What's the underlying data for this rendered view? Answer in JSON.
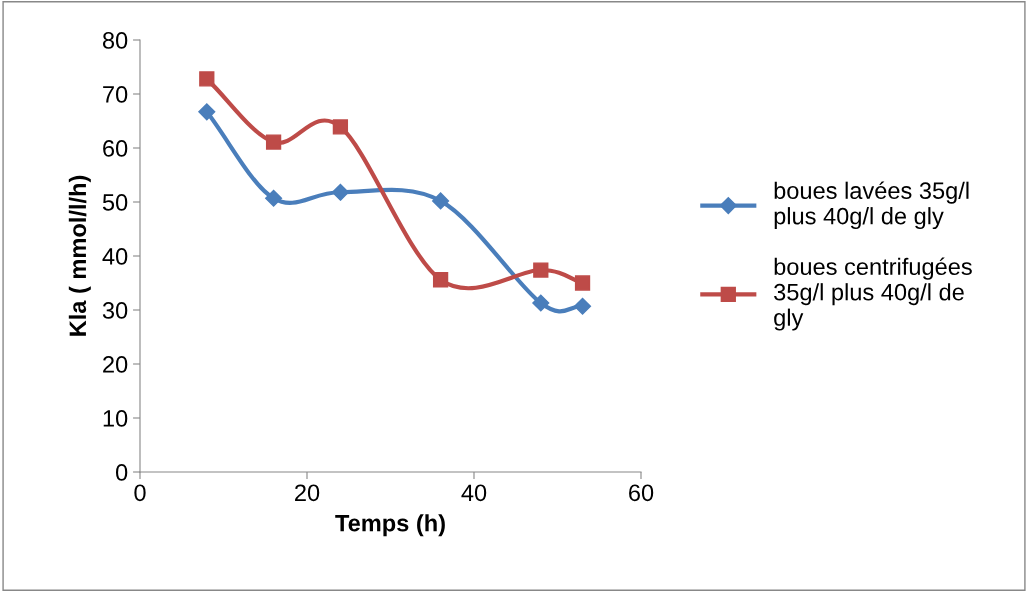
{
  "chart_data": {
    "type": "line",
    "xlabel": "Temps (h)",
    "ylabel": "Kla ( mmol/l/h)",
    "xlim": [
      0,
      60
    ],
    "xticks": [
      0,
      20,
      40,
      60
    ],
    "ylim": [
      0,
      80
    ],
    "yticks": [
      0,
      10,
      20,
      30,
      40,
      50,
      60,
      70,
      80
    ],
    "grid": false,
    "legend": "right",
    "line_style": "solid",
    "series": [
      {
        "name": "boues lavées 35g/l plus 40g/l de gly",
        "color": "#4a7ebb",
        "marker": "diamond",
        "x": [
          8,
          16,
          24,
          36,
          48,
          53
        ],
        "values": [
          66.7,
          50.7,
          51.8,
          50.2,
          31.3,
          30.7
        ]
      },
      {
        "name": "boues centrifugées 35g/l plus 40g/l de gly",
        "color": "#be4b48",
        "marker": "square",
        "x": [
          8,
          16,
          24,
          36,
          48,
          53
        ],
        "values": [
          72.8,
          61.1,
          63.9,
          35.6,
          37.4,
          35.0
        ]
      }
    ]
  }
}
